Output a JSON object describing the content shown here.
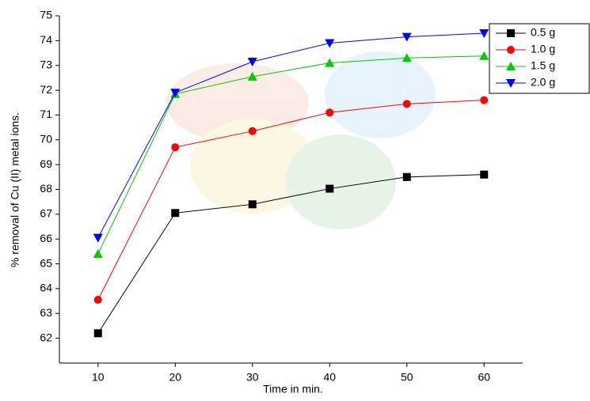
{
  "chart_data": {
    "type": "line",
    "x_label": "Time in min.",
    "y_label": "% removal of Cu (II) metal ions.",
    "x": [
      10,
      20,
      30,
      40,
      50,
      60
    ],
    "xlim": [
      5,
      65
    ],
    "xticks": [
      10,
      20,
      30,
      40,
      50,
      60
    ],
    "ylim": [
      61,
      75
    ],
    "yticks": [
      62,
      63,
      64,
      65,
      66,
      67,
      68,
      69,
      70,
      71,
      72,
      73,
      74,
      75
    ],
    "legend": "upper-right",
    "series": [
      {
        "name": "0.5 g",
        "color": "#000000",
        "marker": "square",
        "values": [
          62.2,
          67.05,
          67.4,
          68.03,
          68.5,
          68.6
        ]
      },
      {
        "name": "1.0 g",
        "color": "#ff0000",
        "marker": "circle",
        "values": [
          63.55,
          69.7,
          70.35,
          71.1,
          71.45,
          71.6
        ]
      },
      {
        "name": "1.5 g",
        "color": "#00cc00",
        "marker": "triangle-up",
        "values": [
          65.4,
          71.85,
          72.55,
          73.1,
          73.3,
          73.38
        ]
      },
      {
        "name": "2.0 g",
        "color": "#0000ff",
        "marker": "triangle-down",
        "values": [
          66.05,
          71.9,
          73.15,
          73.9,
          74.15,
          74.3
        ]
      }
    ]
  }
}
